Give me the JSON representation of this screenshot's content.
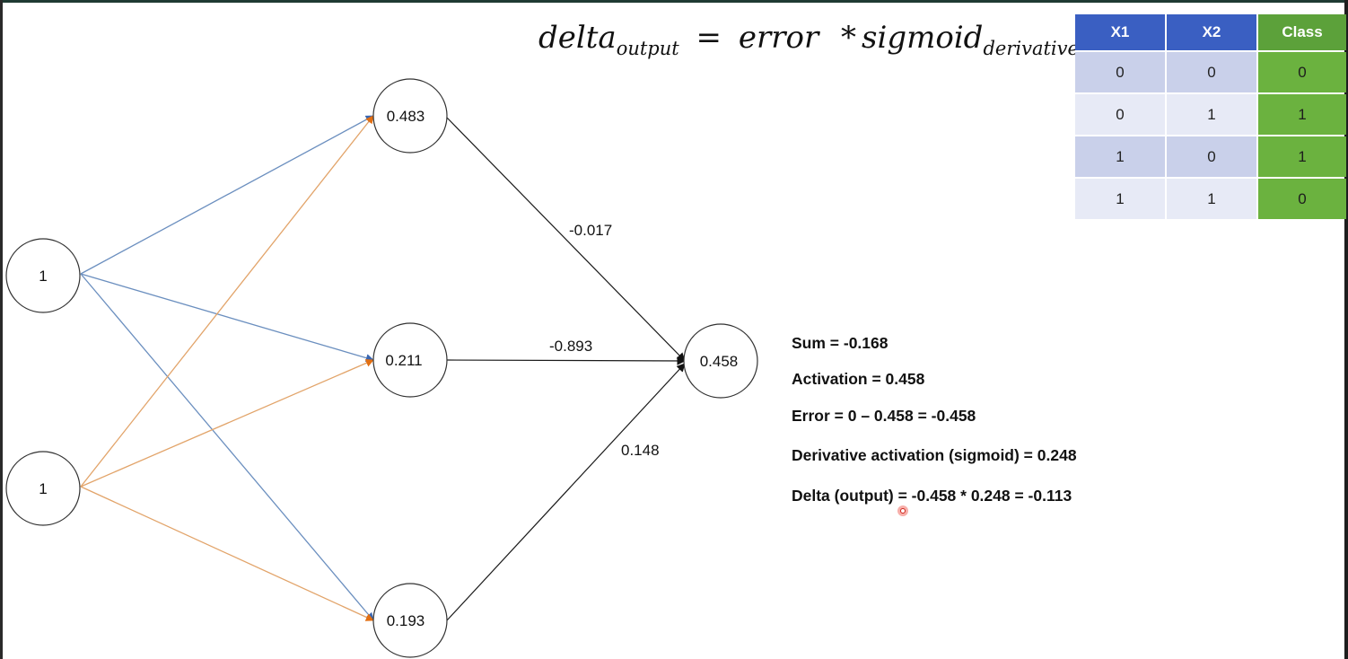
{
  "formula": {
    "lhs": "delta",
    "lhs_sub": "output",
    "equals": "=",
    "term1": "error",
    "times": "*",
    "term2": "sigmoid",
    "term2_sub": "derivative"
  },
  "xor_table": {
    "headers": [
      "X1",
      "X2",
      "Class"
    ],
    "rows": [
      [
        "0",
        "0",
        "0"
      ],
      [
        "0",
        "1",
        "1"
      ],
      [
        "1",
        "0",
        "1"
      ],
      [
        "1",
        "1",
        "0"
      ]
    ]
  },
  "network": {
    "inputs": [
      "1",
      "1"
    ],
    "hidden": [
      "0.483",
      "0.211",
      "0.193"
    ],
    "output": "0.458",
    "weights_hidden_output": [
      "-0.017",
      "-0.893",
      "0.148"
    ],
    "colors": {
      "input1_edges": "#6b8fbf",
      "input2_edges": "#e2a46a",
      "input1_arrow": "#3a66b0",
      "input2_arrow": "#e36f12",
      "output_edges": "#1a1a1a"
    }
  },
  "notes": {
    "sum": "Sum = -0.168",
    "activation": "Activation = 0.458",
    "error": "Error = 0 – 0.458 = -0.458",
    "derivative": "Derivative activation (sigmoid) = 0.248",
    "delta": "Delta (output) = -0.458 * 0.248 = -0.113"
  }
}
